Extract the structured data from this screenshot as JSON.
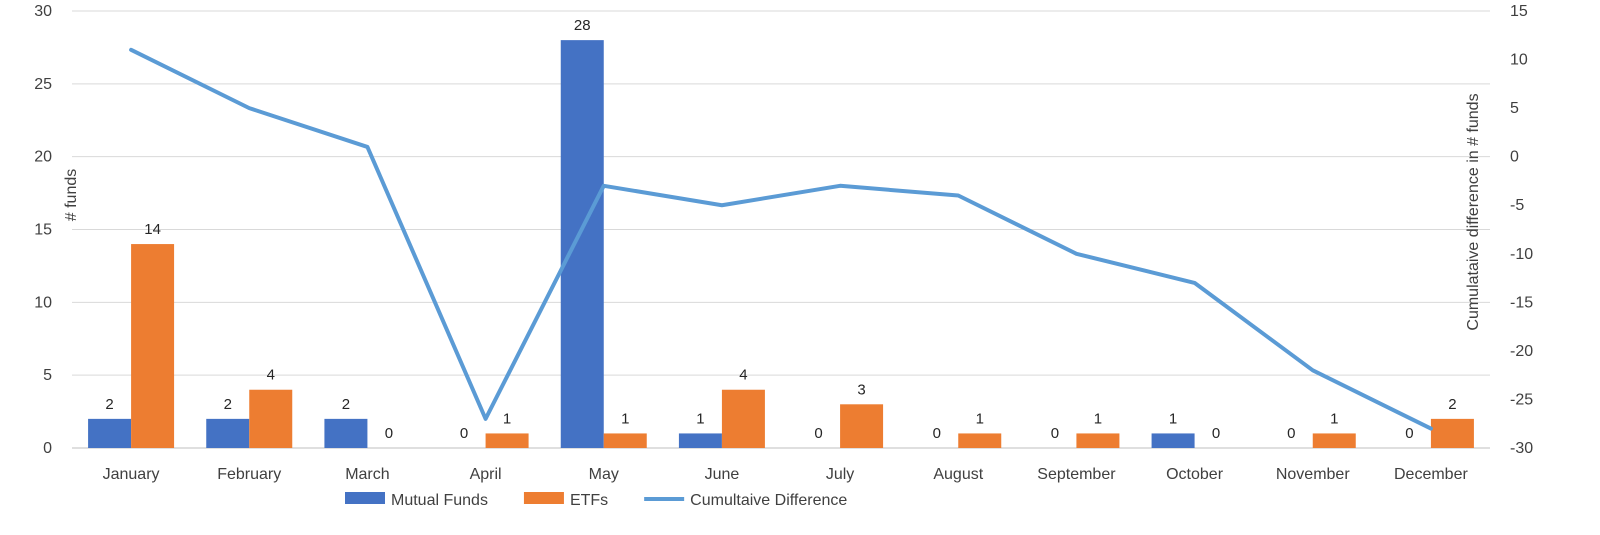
{
  "chart_data": {
    "type": "bar",
    "title": "",
    "categories": [
      "January",
      "February",
      "March",
      "April",
      "May",
      "June",
      "July",
      "August",
      "September",
      "October",
      "November",
      "December"
    ],
    "series": [
      {
        "name": "Mutual Funds",
        "type": "bar",
        "axis": "left",
        "color": "#4472C4",
        "values": [
          2,
          2,
          2,
          0,
          28,
          1,
          0,
          0,
          0,
          1,
          0,
          0
        ]
      },
      {
        "name": "ETFs",
        "type": "bar",
        "axis": "left",
        "color": "#ED7D31",
        "values": [
          14,
          4,
          0,
          1,
          1,
          4,
          3,
          1,
          1,
          0,
          1,
          2
        ]
      },
      {
        "name": "Cumultaive Difference",
        "type": "line",
        "axis": "right",
        "color": "#5B9BD5",
        "values": [
          11,
          5,
          1,
          -27,
          -3,
          -5,
          -3,
          -4,
          -10,
          -13,
          -22,
          -28
        ]
      }
    ],
    "ylabel": "# funds",
    "y2label": "Cumulataive difference in # funds",
    "ylim": [
      0,
      30
    ],
    "yticks": [
      0,
      5,
      10,
      15,
      20,
      25,
      30
    ],
    "y2lim": [
      -30,
      15
    ],
    "y2ticks": [
      -30,
      -25,
      -20,
      -15,
      -10,
      -5,
      0,
      5,
      10,
      15
    ],
    "grid": true,
    "legend_position": "bottom"
  }
}
